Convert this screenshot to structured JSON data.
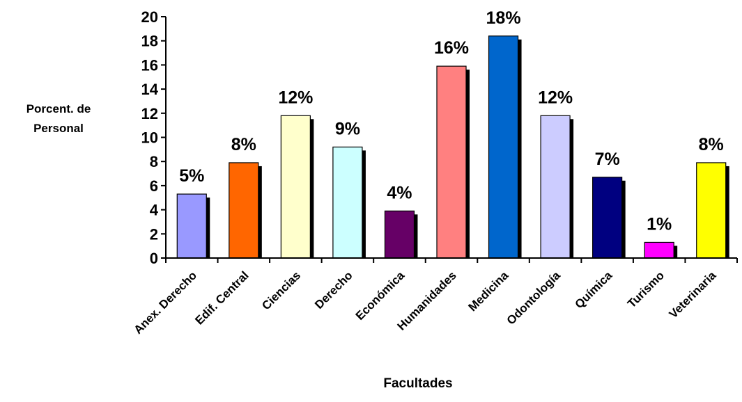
{
  "chart_data": {
    "type": "bar",
    "xlabel": "Facultades",
    "ylabel_lines": [
      "Porcent. de",
      "Personal"
    ],
    "ylim": [
      0,
      20
    ],
    "yticks": [
      0,
      2,
      4,
      6,
      8,
      10,
      12,
      14,
      16,
      18,
      20
    ],
    "grid": false,
    "legend": "none",
    "categories": [
      "Anex. Derecho",
      "Edif. Central",
      "Ciencias",
      "Derecho",
      "Económica",
      "Humanidades",
      "Medicina",
      "Odontología",
      "Química",
      "Turismo",
      "Veterinaria"
    ],
    "values": [
      5.3,
      7.9,
      11.8,
      9.2,
      3.9,
      15.9,
      18.4,
      11.8,
      6.7,
      1.3,
      7.9
    ],
    "data_labels": [
      "5%",
      "8%",
      "12%",
      "9%",
      "4%",
      "16%",
      "18%",
      "12%",
      "7%",
      "1%",
      "8%"
    ],
    "colors": [
      "#9999FF",
      "#FF6600",
      "#FFFFCC",
      "#CCFFFF",
      "#660066",
      "#FF8080",
      "#0066CC",
      "#CCCCFF",
      "#000080",
      "#FF00FF",
      "#FFFF00"
    ]
  }
}
